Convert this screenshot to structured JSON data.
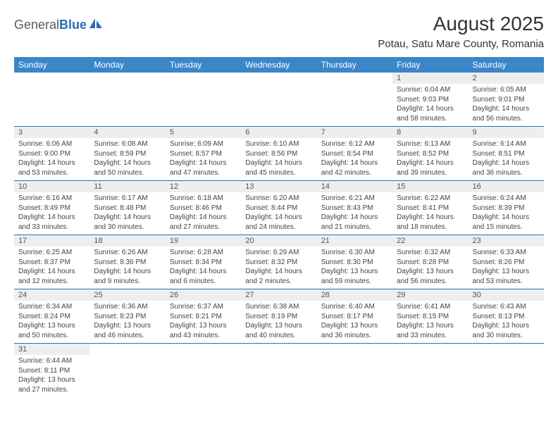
{
  "brand": {
    "name1": "General",
    "name2": "Blue"
  },
  "title": "August 2025",
  "subtitle": "Potau, Satu Mare County, Romania",
  "colors": {
    "header_bg": "#3b86c9",
    "header_text": "#ffffff",
    "rule": "#2a6db5",
    "daynum_bg": "#eeeeee",
    "text": "#444444",
    "brand_blue": "#2a6db5",
    "brand_gray": "#5a5a5a"
  },
  "calendar": {
    "columns": [
      "Sunday",
      "Monday",
      "Tuesday",
      "Wednesday",
      "Thursday",
      "Friday",
      "Saturday"
    ],
    "weeks": [
      [
        null,
        null,
        null,
        null,
        null,
        {
          "n": "1",
          "sr": "Sunrise: 6:04 AM",
          "ss": "Sunset: 9:03 PM",
          "dl": "Daylight: 14 hours and 58 minutes."
        },
        {
          "n": "2",
          "sr": "Sunrise: 6:05 AM",
          "ss": "Sunset: 9:01 PM",
          "dl": "Daylight: 14 hours and 56 minutes."
        }
      ],
      [
        {
          "n": "3",
          "sr": "Sunrise: 6:06 AM",
          "ss": "Sunset: 9:00 PM",
          "dl": "Daylight: 14 hours and 53 minutes."
        },
        {
          "n": "4",
          "sr": "Sunrise: 6:08 AM",
          "ss": "Sunset: 8:59 PM",
          "dl": "Daylight: 14 hours and 50 minutes."
        },
        {
          "n": "5",
          "sr": "Sunrise: 6:09 AM",
          "ss": "Sunset: 8:57 PM",
          "dl": "Daylight: 14 hours and 47 minutes."
        },
        {
          "n": "6",
          "sr": "Sunrise: 6:10 AM",
          "ss": "Sunset: 8:56 PM",
          "dl": "Daylight: 14 hours and 45 minutes."
        },
        {
          "n": "7",
          "sr": "Sunrise: 6:12 AM",
          "ss": "Sunset: 8:54 PM",
          "dl": "Daylight: 14 hours and 42 minutes."
        },
        {
          "n": "8",
          "sr": "Sunrise: 6:13 AM",
          "ss": "Sunset: 8:52 PM",
          "dl": "Daylight: 14 hours and 39 minutes."
        },
        {
          "n": "9",
          "sr": "Sunrise: 6:14 AM",
          "ss": "Sunset: 8:51 PM",
          "dl": "Daylight: 14 hours and 36 minutes."
        }
      ],
      [
        {
          "n": "10",
          "sr": "Sunrise: 6:16 AM",
          "ss": "Sunset: 8:49 PM",
          "dl": "Daylight: 14 hours and 33 minutes."
        },
        {
          "n": "11",
          "sr": "Sunrise: 6:17 AM",
          "ss": "Sunset: 8:48 PM",
          "dl": "Daylight: 14 hours and 30 minutes."
        },
        {
          "n": "12",
          "sr": "Sunrise: 6:18 AM",
          "ss": "Sunset: 8:46 PM",
          "dl": "Daylight: 14 hours and 27 minutes."
        },
        {
          "n": "13",
          "sr": "Sunrise: 6:20 AM",
          "ss": "Sunset: 8:44 PM",
          "dl": "Daylight: 14 hours and 24 minutes."
        },
        {
          "n": "14",
          "sr": "Sunrise: 6:21 AM",
          "ss": "Sunset: 8:43 PM",
          "dl": "Daylight: 14 hours and 21 minutes."
        },
        {
          "n": "15",
          "sr": "Sunrise: 6:22 AM",
          "ss": "Sunset: 8:41 PM",
          "dl": "Daylight: 14 hours and 18 minutes."
        },
        {
          "n": "16",
          "sr": "Sunrise: 6:24 AM",
          "ss": "Sunset: 8:39 PM",
          "dl": "Daylight: 14 hours and 15 minutes."
        }
      ],
      [
        {
          "n": "17",
          "sr": "Sunrise: 6:25 AM",
          "ss": "Sunset: 8:37 PM",
          "dl": "Daylight: 14 hours and 12 minutes."
        },
        {
          "n": "18",
          "sr": "Sunrise: 6:26 AM",
          "ss": "Sunset: 8:36 PM",
          "dl": "Daylight: 14 hours and 9 minutes."
        },
        {
          "n": "19",
          "sr": "Sunrise: 6:28 AM",
          "ss": "Sunset: 8:34 PM",
          "dl": "Daylight: 14 hours and 6 minutes."
        },
        {
          "n": "20",
          "sr": "Sunrise: 6:29 AM",
          "ss": "Sunset: 8:32 PM",
          "dl": "Daylight: 14 hours and 2 minutes."
        },
        {
          "n": "21",
          "sr": "Sunrise: 6:30 AM",
          "ss": "Sunset: 8:30 PM",
          "dl": "Daylight: 13 hours and 59 minutes."
        },
        {
          "n": "22",
          "sr": "Sunrise: 6:32 AM",
          "ss": "Sunset: 8:28 PM",
          "dl": "Daylight: 13 hours and 56 minutes."
        },
        {
          "n": "23",
          "sr": "Sunrise: 6:33 AM",
          "ss": "Sunset: 8:26 PM",
          "dl": "Daylight: 13 hours and 53 minutes."
        }
      ],
      [
        {
          "n": "24",
          "sr": "Sunrise: 6:34 AM",
          "ss": "Sunset: 8:24 PM",
          "dl": "Daylight: 13 hours and 50 minutes."
        },
        {
          "n": "25",
          "sr": "Sunrise: 6:36 AM",
          "ss": "Sunset: 8:23 PM",
          "dl": "Daylight: 13 hours and 46 minutes."
        },
        {
          "n": "26",
          "sr": "Sunrise: 6:37 AM",
          "ss": "Sunset: 8:21 PM",
          "dl": "Daylight: 13 hours and 43 minutes."
        },
        {
          "n": "27",
          "sr": "Sunrise: 6:38 AM",
          "ss": "Sunset: 8:19 PM",
          "dl": "Daylight: 13 hours and 40 minutes."
        },
        {
          "n": "28",
          "sr": "Sunrise: 6:40 AM",
          "ss": "Sunset: 8:17 PM",
          "dl": "Daylight: 13 hours and 36 minutes."
        },
        {
          "n": "29",
          "sr": "Sunrise: 6:41 AM",
          "ss": "Sunset: 8:15 PM",
          "dl": "Daylight: 13 hours and 33 minutes."
        },
        {
          "n": "30",
          "sr": "Sunrise: 6:43 AM",
          "ss": "Sunset: 8:13 PM",
          "dl": "Daylight: 13 hours and 30 minutes."
        }
      ],
      [
        {
          "n": "31",
          "sr": "Sunrise: 6:44 AM",
          "ss": "Sunset: 8:11 PM",
          "dl": "Daylight: 13 hours and 27 minutes."
        },
        null,
        null,
        null,
        null,
        null,
        null
      ]
    ]
  }
}
